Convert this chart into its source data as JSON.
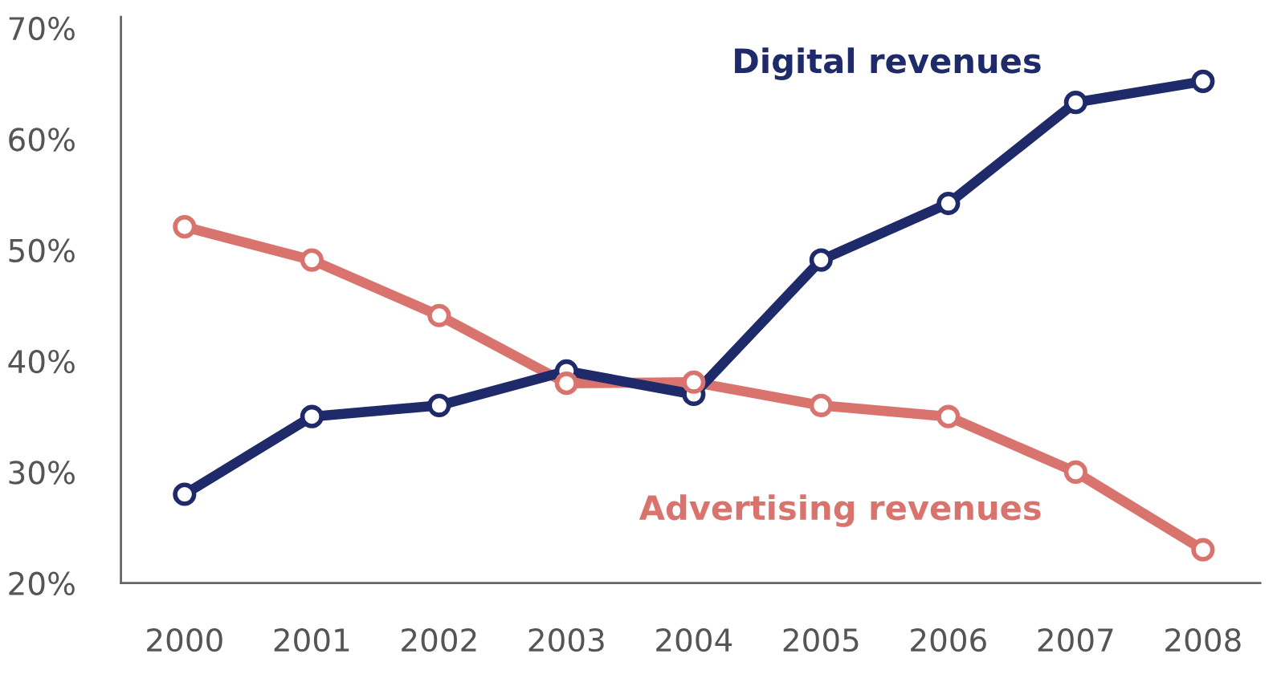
{
  "chart_data": {
    "type": "line",
    "categories": [
      "2000",
      "2001",
      "2002",
      "2003",
      "2004",
      "2005",
      "2006",
      "2007",
      "2008"
    ],
    "series": [
      {
        "name": "Digital revenues",
        "color": "#1f2a6b",
        "values": [
          28.0,
          35.0,
          36.0,
          39.1,
          37.0,
          49.1,
          54.2,
          63.3,
          65.2
        ]
      },
      {
        "name": "Advertising revenues",
        "color": "#d9736d",
        "values": [
          52.1,
          49.1,
          44.1,
          38.0,
          38.1,
          36.0,
          35.0,
          30.0,
          23.0
        ]
      }
    ],
    "ylim": [
      20,
      71
    ],
    "yticks": [
      {
        "value": 20,
        "label": "20%"
      },
      {
        "value": 30,
        "label": "30%"
      },
      {
        "value": 40,
        "label": "40%"
      },
      {
        "value": 50,
        "label": "50%"
      },
      {
        "value": 60,
        "label": "60%"
      },
      {
        "value": 70,
        "label": "70%"
      }
    ],
    "grid": false,
    "legend": false,
    "marker": "circle",
    "line_style": "solid"
  }
}
